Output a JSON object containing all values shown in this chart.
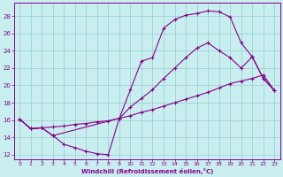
{
  "xlabel": "Windchill (Refroidissement éolien,°C)",
  "bg_color": "#c8eef0",
  "line_color": "#880088",
  "grid_color": "#99cccc",
  "xlim": [
    -0.5,
    23.5
  ],
  "ylim": [
    11.5,
    29.5
  ],
  "yticks": [
    12,
    14,
    16,
    18,
    20,
    22,
    24,
    26,
    28
  ],
  "xticks": [
    0,
    1,
    2,
    3,
    4,
    5,
    6,
    7,
    8,
    9,
    10,
    11,
    12,
    13,
    14,
    15,
    16,
    17,
    18,
    19,
    20,
    21,
    22,
    23
  ],
  "line1_x": [
    0,
    1,
    2,
    3,
    4,
    5,
    6,
    7,
    8,
    9,
    10,
    11,
    12,
    13,
    14,
    15,
    16,
    17,
    18,
    19,
    20,
    21,
    22,
    23
  ],
  "line1_y": [
    16.1,
    15.0,
    15.1,
    14.2,
    13.2,
    12.8,
    12.4,
    12.1,
    12.0,
    16.2,
    19.5,
    22.8,
    23.2,
    26.6,
    27.6,
    28.1,
    28.3,
    28.6,
    28.5,
    27.9,
    24.9,
    23.3,
    20.8,
    19.4
  ],
  "line2_x": [
    0,
    1,
    2,
    3,
    4,
    5,
    6,
    7,
    8,
    9,
    10,
    11,
    12,
    13,
    14,
    15,
    16,
    17,
    18,
    19,
    20,
    21,
    22,
    23
  ],
  "line2_y": [
    16.1,
    15.0,
    15.1,
    15.2,
    15.3,
    15.5,
    15.6,
    15.8,
    15.9,
    16.2,
    16.5,
    16.9,
    17.2,
    17.6,
    18.0,
    18.4,
    18.8,
    19.2,
    19.7,
    20.2,
    20.5,
    20.8,
    21.2,
    19.4
  ],
  "line3_x": [
    0,
    1,
    2,
    3,
    9,
    10,
    11,
    12,
    13,
    14,
    15,
    16,
    17,
    18,
    19,
    20,
    21,
    22,
    23
  ],
  "line3_y": [
    16.1,
    15.0,
    15.1,
    14.2,
    16.2,
    17.5,
    18.5,
    19.5,
    20.8,
    22.0,
    23.2,
    24.3,
    24.9,
    24.0,
    23.2,
    22.0,
    23.3,
    20.8,
    19.4
  ]
}
